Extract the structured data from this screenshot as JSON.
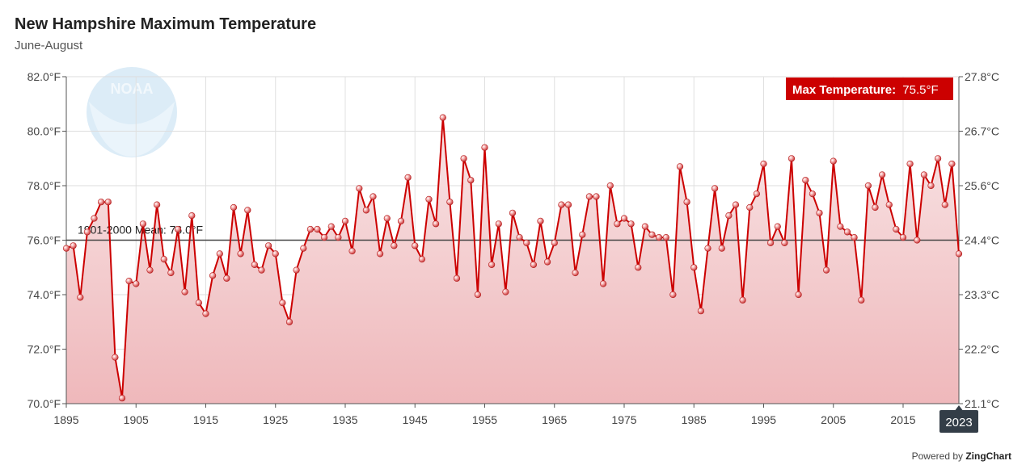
{
  "header": {
    "title": "New Hampshire Maximum Temperature",
    "subtitle": "June-August"
  },
  "logo_text": "NOAA",
  "footer": {
    "powered_prefix": "Powered by ",
    "powered_brand": "ZingChart"
  },
  "badge": {
    "label": "Max Temperature:",
    "value": "75.5°F"
  },
  "hover_year_label": "2023",
  "mean_label": "1901-2000 Mean: 76.0°F",
  "colors": {
    "line": "#cc0000",
    "fill_top": "#f7dfe0",
    "fill_bottom": "#efb8bb",
    "mean_line": "#444444",
    "badge_bg": "#cc0000",
    "tooltip_bg": "#333d47"
  },
  "chart_data": {
    "type": "line",
    "x_start": 1895,
    "x": [
      1895,
      1896,
      1897,
      1898,
      1899,
      1900,
      1901,
      1902,
      1903,
      1904,
      1905,
      1906,
      1907,
      1908,
      1909,
      1910,
      1911,
      1912,
      1913,
      1914,
      1915,
      1916,
      1917,
      1918,
      1919,
      1920,
      1921,
      1922,
      1923,
      1924,
      1925,
      1926,
      1927,
      1928,
      1929,
      1930,
      1931,
      1932,
      1933,
      1934,
      1935,
      1936,
      1937,
      1938,
      1939,
      1940,
      1941,
      1942,
      1943,
      1944,
      1945,
      1946,
      1947,
      1948,
      1949,
      1950,
      1951,
      1952,
      1953,
      1954,
      1955,
      1956,
      1957,
      1958,
      1959,
      1960,
      1961,
      1962,
      1963,
      1964,
      1965,
      1966,
      1967,
      1968,
      1969,
      1970,
      1971,
      1972,
      1973,
      1974,
      1975,
      1976,
      1977,
      1978,
      1979,
      1980,
      1981,
      1982,
      1983,
      1984,
      1985,
      1986,
      1987,
      1988,
      1989,
      1990,
      1991,
      1992,
      1993,
      1994,
      1995,
      1996,
      1997,
      1998,
      1999,
      2000,
      2001,
      2002,
      2003,
      2004,
      2005,
      2006,
      2007,
      2008,
      2009,
      2010,
      2011,
      2012,
      2013,
      2014,
      2015,
      2016,
      2017,
      2018,
      2019,
      2020,
      2021,
      2022,
      2023
    ],
    "values": [
      75.7,
      75.8,
      73.9,
      76.3,
      76.8,
      77.4,
      77.4,
      71.7,
      70.2,
      74.5,
      74.4,
      76.6,
      74.9,
      77.3,
      75.3,
      74.8,
      76.4,
      74.1,
      76.9,
      73.7,
      73.3,
      74.7,
      75.5,
      74.6,
      77.2,
      75.5,
      77.1,
      75.1,
      74.9,
      75.8,
      75.5,
      73.7,
      73.0,
      74.9,
      75.7,
      76.4,
      76.4,
      76.1,
      76.5,
      76.1,
      76.7,
      75.6,
      77.9,
      77.1,
      77.6,
      75.5,
      76.8,
      75.8,
      76.7,
      78.3,
      75.8,
      75.3,
      77.5,
      76.6,
      80.5,
      77.4,
      74.6,
      79.0,
      78.2,
      74.0,
      79.4,
      75.1,
      76.6,
      74.1,
      77.0,
      76.1,
      75.9,
      75.1,
      76.7,
      75.2,
      75.9,
      77.3,
      77.3,
      74.8,
      76.2,
      77.6,
      77.6,
      74.4,
      78.0,
      76.6,
      76.8,
      76.6,
      75.0,
      76.5,
      76.2,
      76.1,
      76.1,
      74.0,
      78.7,
      77.4,
      75.0,
      73.4,
      75.7,
      77.9,
      75.7,
      76.9,
      77.3,
      73.8,
      77.2,
      77.7,
      78.8,
      75.9,
      76.5,
      75.9,
      79.0,
      74.0,
      78.2,
      77.7,
      77.0,
      74.9,
      78.9,
      76.5,
      76.3,
      76.1,
      73.8,
      78.0,
      77.2,
      78.4,
      77.3,
      76.4,
      76.1,
      78.8,
      76.0,
      78.4,
      78.0,
      79.0,
      77.3,
      78.8,
      75.5
    ],
    "mean": 76.0,
    "ylim": [
      70,
      82
    ],
    "y_ticks": [
      "70.0°F",
      "72.0°F",
      "74.0°F",
      "76.0°F",
      "78.0°F",
      "80.0°F",
      "82.0°F"
    ],
    "y2_ticks": [
      "21.1°C",
      "22.2°C",
      "23.3°C",
      "24.4°C",
      "25.6°C",
      "26.7°C",
      "27.8°C"
    ],
    "x_ticks": [
      "1895",
      "1905",
      "1915",
      "1925",
      "1935",
      "1945",
      "1955",
      "1965",
      "1975",
      "1985",
      "1995",
      "2005",
      "2015"
    ],
    "xlim": [
      1895,
      2023
    ],
    "grid": true
  }
}
